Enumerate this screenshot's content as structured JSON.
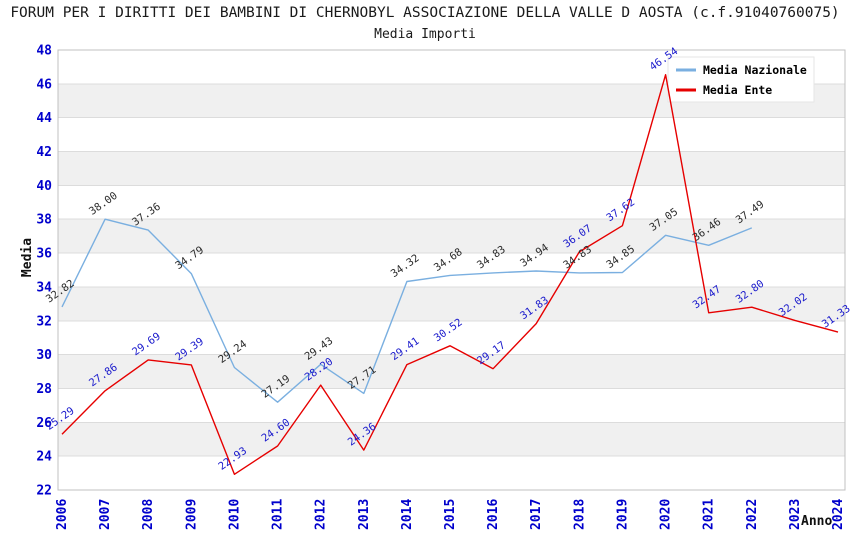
{
  "chart_data": {
    "type": "line",
    "title": "FORUM PER I DIRITTI DEI BAMBINI DI CHERNOBYL ASSOCIAZIONE DELLA VALLE D AOSTA (c.f.91040760075)",
    "subtitle": "Media Importi",
    "xlabel": "Anno",
    "ylabel": "Media",
    "x": [
      2006,
      2007,
      2008,
      2009,
      2010,
      2011,
      2012,
      2013,
      2014,
      2015,
      2016,
      2017,
      2018,
      2019,
      2020,
      2021,
      2022,
      2023,
      2024
    ],
    "ylim": [
      22,
      48
    ],
    "ytick_step": 2,
    "grid": true,
    "legend_position": "top-right",
    "series": [
      {
        "name": "Media Nazionale",
        "color": "#7aafe0",
        "label_color": "#2b2b2b",
        "values": [
          32.82,
          38.0,
          37.36,
          34.79,
          29.24,
          27.19,
          29.43,
          27.71,
          34.32,
          34.68,
          34.83,
          34.94,
          34.83,
          34.85,
          37.05,
          36.46,
          37.49,
          null,
          null
        ]
      },
      {
        "name": "Media Ente",
        "color": "#e60000",
        "label_color": "#1a1acc",
        "values": [
          25.29,
          27.86,
          29.69,
          29.39,
          22.93,
          24.6,
          28.2,
          24.36,
          29.41,
          30.52,
          29.17,
          31.83,
          36.07,
          37.62,
          46.54,
          32.47,
          32.8,
          32.02,
          31.33
        ]
      }
    ],
    "colors": {
      "axis_tick": "#0000cc",
      "band": "#f0f0f0",
      "grid_line": "#dcdcdc",
      "plot_border": "#c0c0c0",
      "legend_bg": "#ffffff",
      "legend_border": "#e6e6e6",
      "legend_text": "#000000",
      "title_text": "#1a1a1a"
    }
  }
}
